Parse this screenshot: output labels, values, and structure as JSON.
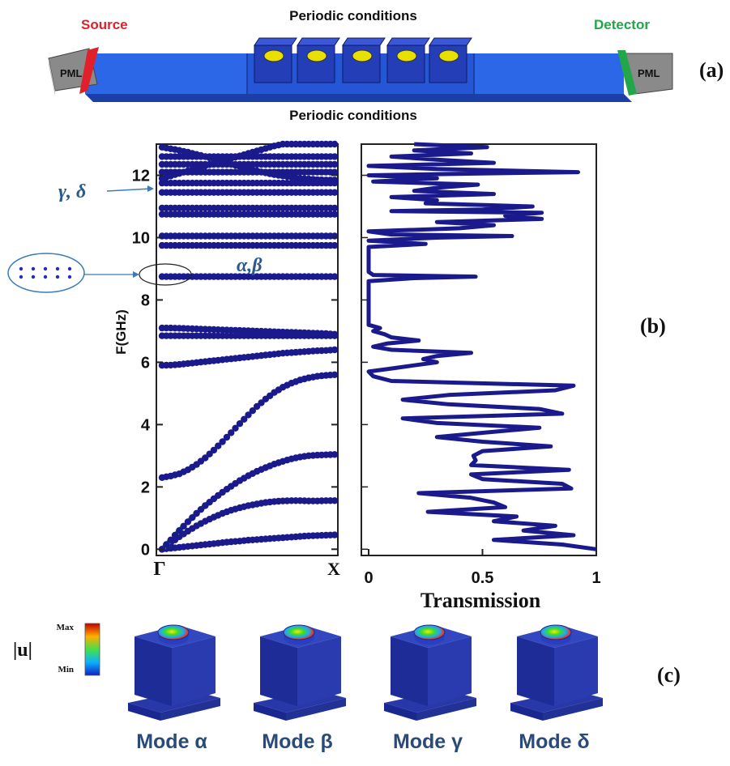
{
  "panel_a": {
    "top_label": "Periodic conditions",
    "bottom_label": "Periodic conditions",
    "source_label": "Source",
    "detector_label": "Detector",
    "pml_left": "PML",
    "pml_right": "PML",
    "tag": "(a)",
    "colors": {
      "waveguide": "#2c67e8",
      "source": "#e0202a",
      "detector": "#22a64a",
      "pillar": "#e8e000"
    }
  },
  "panel_b": {
    "tag": "(b)",
    "band_annotation_gamma_delta": "γ, δ",
    "band_annotation_alpha_beta": "α,β"
  },
  "panel_c": {
    "tag": "(c)",
    "colorbar_label": "|u|",
    "colorbar_max": "Max",
    "colorbar_min": "Min",
    "modes": [
      "Mode α",
      "Mode β",
      "Mode γ",
      "Mode δ"
    ]
  },
  "chart_data": [
    {
      "type": "scatter",
      "title": "",
      "xlabel": "",
      "ylabel": "F(GHz)",
      "x_tick_labels": [
        "Γ",
        "X"
      ],
      "y_ticks": [
        0,
        2,
        4,
        6,
        8,
        10,
        12
      ],
      "ylim": [
        -0.2,
        13
      ],
      "x": [
        0,
        0.05,
        0.1,
        0.15,
        0.2,
        0.25,
        0.3,
        0.35,
        0.4,
        0.45,
        0.5,
        0.55,
        0.6,
        0.65,
        0.7,
        0.75,
        0.8,
        0.85,
        0.9,
        0.95,
        1
      ],
      "series": [
        {
          "values": [
            0.0,
            0.03,
            0.06,
            0.09,
            0.12,
            0.15,
            0.18,
            0.21,
            0.24,
            0.26,
            0.29,
            0.31,
            0.33,
            0.35,
            0.37,
            0.39,
            0.41,
            0.43,
            0.44,
            0.45,
            0.46
          ],
          "highlight": "#e31b1b"
        },
        {
          "values": [
            0.0,
            0.2,
            0.4,
            0.58,
            0.75,
            0.9,
            1.03,
            1.15,
            1.25,
            1.33,
            1.4,
            1.45,
            1.5,
            1.53,
            1.55,
            1.56,
            1.56,
            1.55,
            1.55,
            1.56,
            1.56
          ],
          "highlight": "#f5a019"
        },
        {
          "values": [
            0.0,
            0.3,
            0.6,
            0.88,
            1.15,
            1.4,
            1.62,
            1.83,
            2.02,
            2.2,
            2.36,
            2.5,
            2.62,
            2.73,
            2.82,
            2.9,
            2.96,
            3.0,
            3.02,
            3.03,
            3.04
          ],
          "highlight": "#22a64a"
        },
        {
          "values": [
            2.3,
            2.35,
            2.42,
            2.55,
            2.72,
            2.93,
            3.18,
            3.45,
            3.74,
            4.03,
            4.31,
            4.58,
            4.82,
            5.03,
            5.2,
            5.33,
            5.43,
            5.5,
            5.55,
            5.58,
            5.6
          ]
        },
        {
          "values": [
            5.9,
            5.91,
            5.93,
            5.96,
            5.99,
            6.02,
            6.05,
            6.08,
            6.11,
            6.14,
            6.17,
            6.2,
            6.23,
            6.26,
            6.29,
            6.31,
            6.33,
            6.35,
            6.37,
            6.38,
            6.4
          ]
        },
        {
          "values": [
            6.85,
            6.85,
            6.85,
            6.85,
            6.85,
            6.85,
            6.85,
            6.85,
            6.85,
            6.85,
            6.85,
            6.85,
            6.85,
            6.85,
            6.85,
            6.85,
            6.85,
            6.85,
            6.85,
            6.85,
            6.85
          ]
        },
        {
          "values": [
            7.1,
            7.1,
            7.09,
            7.08,
            7.07,
            7.06,
            7.05,
            7.04,
            7.03,
            7.02,
            7.01,
            7.0,
            6.99,
            6.98,
            6.97,
            6.96,
            6.95,
            6.94,
            6.93,
            6.92,
            6.9
          ]
        },
        {
          "values": [
            8.75,
            8.75,
            8.75,
            8.75,
            8.75,
            8.75,
            8.75,
            8.75,
            8.75,
            8.75,
            8.75,
            8.75,
            8.75,
            8.75,
            8.75,
            8.75,
            8.75,
            8.75,
            8.75,
            8.75,
            8.75
          ]
        },
        {
          "values": [
            9.75,
            9.75,
            9.75,
            9.75,
            9.75,
            9.75,
            9.75,
            9.75,
            9.75,
            9.75,
            9.75,
            9.75,
            9.75,
            9.75,
            9.75,
            9.75,
            9.75,
            9.75,
            9.75,
            9.75,
            9.75
          ]
        },
        {
          "values": [
            10.05,
            10.05,
            10.05,
            10.05,
            10.05,
            10.05,
            10.05,
            10.05,
            10.05,
            10.05,
            10.05,
            10.05,
            10.05,
            10.05,
            10.05,
            10.05,
            10.05,
            10.05,
            10.05,
            10.05,
            10.05
          ]
        },
        {
          "values": [
            10.75,
            10.75,
            10.75,
            10.75,
            10.75,
            10.75,
            10.75,
            10.75,
            10.75,
            10.75,
            10.75,
            10.75,
            10.75,
            10.75,
            10.75,
            10.75,
            10.75,
            10.75,
            10.75,
            10.75,
            10.75
          ]
        },
        {
          "values": [
            10.95,
            10.95,
            10.95,
            10.95,
            10.95,
            10.95,
            10.95,
            10.95,
            10.95,
            10.95,
            10.95,
            10.95,
            10.95,
            10.95,
            10.95,
            10.95,
            10.95,
            10.95,
            10.95,
            10.95,
            10.95
          ]
        },
        {
          "values": [
            11.45,
            11.45,
            11.45,
            11.45,
            11.45,
            11.45,
            11.45,
            11.45,
            11.45,
            11.45,
            11.45,
            11.45,
            11.45,
            11.45,
            11.45,
            11.45,
            11.45,
            11.45,
            11.45,
            11.45,
            11.45
          ]
        },
        {
          "values": [
            11.75,
            11.75,
            11.75,
            11.75,
            11.75,
            11.75,
            11.75,
            11.75,
            11.75,
            11.75,
            11.75,
            11.75,
            11.75,
            11.75,
            11.75,
            11.75,
            11.75,
            11.75,
            11.75,
            11.75,
            11.75
          ]
        },
        {
          "values": [
            12.1,
            12.1,
            12.1,
            12.1,
            12.1,
            12.1,
            12.1,
            12.1,
            12.1,
            12.1,
            12.1,
            12.1,
            12.1,
            12.1,
            12.1,
            12.1,
            12.1,
            12.1,
            12.1,
            12.1,
            12.1
          ]
        },
        {
          "values": [
            12.35,
            12.35,
            12.35,
            12.35,
            12.35,
            12.35,
            12.35,
            12.35,
            12.35,
            12.35,
            12.35,
            12.35,
            12.35,
            12.35,
            12.35,
            12.35,
            12.35,
            12.35,
            12.35,
            12.35,
            12.35
          ]
        },
        {
          "values": [
            12.6,
            12.6,
            12.6,
            12.6,
            12.6,
            12.6,
            12.6,
            12.6,
            12.6,
            12.6,
            12.6,
            12.6,
            12.6,
            12.6,
            12.6,
            12.6,
            12.6,
            12.6,
            12.6,
            12.6,
            12.6
          ]
        },
        {
          "values": [
            11.9,
            11.98,
            12.06,
            12.14,
            12.22,
            12.3,
            12.38,
            12.46,
            12.54,
            12.62,
            12.7,
            12.78,
            12.86,
            12.94,
            13.0,
            13.0,
            13.0,
            13.0,
            13.0,
            13.0,
            13.0
          ]
        },
        {
          "values": [
            12.9,
            12.85,
            12.8,
            12.74,
            12.67,
            12.6,
            12.52,
            12.44,
            12.36,
            12.28,
            12.2,
            12.14,
            12.08,
            12.02,
            11.98,
            11.94,
            11.9,
            11.88,
            11.86,
            11.85,
            11.85
          ]
        }
      ]
    },
    {
      "type": "line",
      "title": "",
      "xlabel": "Transmission",
      "ylabel": "",
      "x_ticks": [
        0,
        0.5,
        1
      ],
      "x_tick_labels": [
        "0",
        "0.5",
        "1"
      ],
      "xlim": [
        0,
        1
      ],
      "ylim": [
        -0.2,
        13
      ],
      "series": [
        {
          "freq": [
            0.0,
            0.15,
            0.3,
            0.45,
            0.6,
            0.75,
            0.9,
            1.05,
            1.2,
            1.35,
            1.5,
            1.65,
            1.8,
            1.95,
            2.1,
            2.25,
            2.4,
            2.55,
            2.7,
            2.85,
            3.0,
            3.15,
            3.3,
            3.45,
            3.6,
            3.75,
            3.9,
            4.05,
            4.2,
            4.35,
            4.5,
            4.65,
            4.8,
            4.95,
            5.1,
            5.25,
            5.4,
            5.55,
            5.7,
            5.8,
            5.9,
            6.0,
            6.1,
            6.2,
            6.3,
            6.4,
            6.5,
            6.6,
            6.7,
            6.8,
            6.9,
            7.0,
            7.1,
            7.2,
            7.4,
            7.8,
            8.2,
            8.6,
            8.7,
            8.75,
            8.8,
            8.9,
            9.3,
            9.7,
            9.8,
            9.9,
            10.0,
            10.05,
            10.1,
            10.2,
            10.3,
            10.4,
            10.5,
            10.6,
            10.7,
            10.8,
            10.85,
            10.9,
            11.0,
            11.1,
            11.2,
            11.3,
            11.4,
            11.5,
            11.6,
            11.7,
            11.8,
            11.9,
            12.0,
            12.05,
            12.1,
            12.2,
            12.3,
            12.4,
            12.5,
            12.6,
            12.7,
            12.8,
            12.9,
            13.0
          ],
          "values": [
            1.0,
            0.85,
            0.55,
            0.9,
            0.68,
            0.82,
            0.55,
            0.65,
            0.26,
            0.6,
            0.55,
            0.45,
            0.22,
            0.89,
            0.85,
            0.5,
            0.45,
            0.88,
            0.45,
            0.47,
            0.46,
            0.5,
            0.8,
            0.5,
            0.3,
            0.52,
            0.75,
            0.3,
            0.15,
            0.85,
            0.75,
            0.35,
            0.15,
            0.35,
            0.82,
            0.9,
            0.1,
            0.02,
            0.0,
            0.1,
            0.2,
            0.3,
            0.24,
            0.3,
            0.45,
            0.1,
            0.02,
            0.08,
            0.22,
            0.1,
            0.07,
            0.02,
            0.05,
            0.0,
            0.0,
            0.0,
            0.0,
            0.0,
            0.2,
            0.47,
            0.02,
            0.0,
            0.0,
            0.0,
            0.25,
            0.0,
            0.3,
            0.63,
            0.1,
            0.0,
            0.4,
            0.55,
            0.3,
            0.76,
            0.6,
            0.76,
            0.1,
            0.5,
            0.72,
            0.25,
            0.3,
            0.1,
            0.55,
            0.2,
            0.3,
            0.48,
            0.02,
            0.3,
            0.0,
            0.4,
            0.92,
            0.3,
            0.0,
            0.55,
            0.3,
            0.1,
            0.45,
            0.2,
            0.52,
            0.2
          ]
        }
      ]
    }
  ]
}
